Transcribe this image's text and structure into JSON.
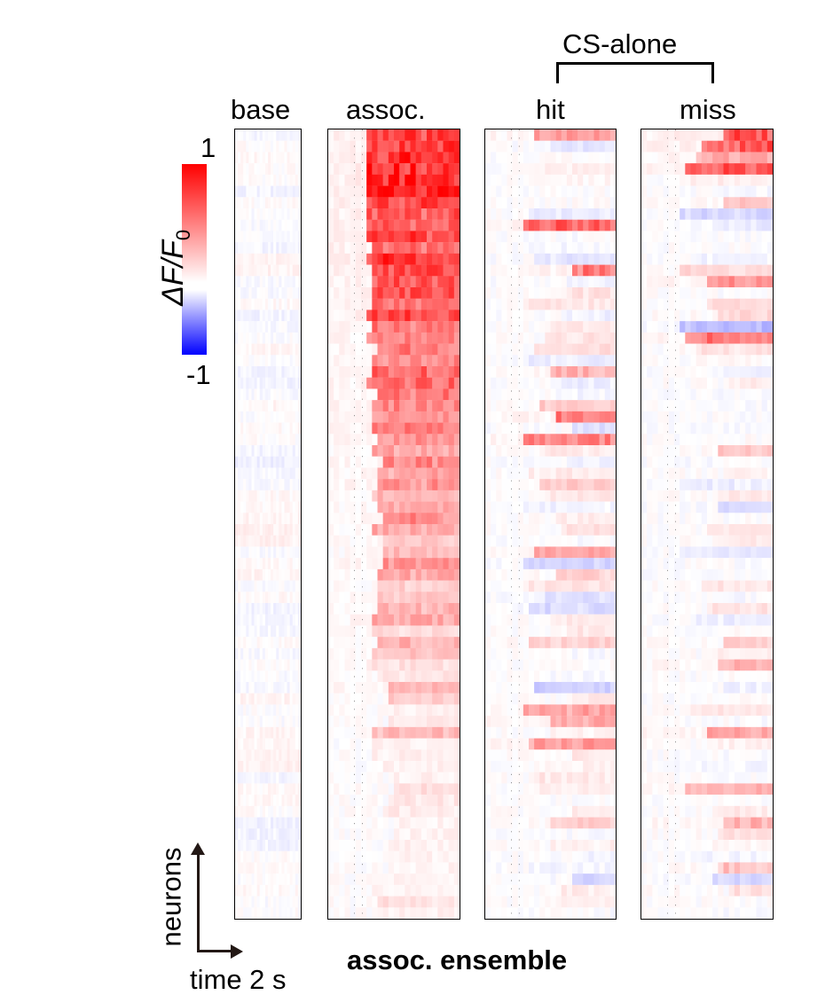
{
  "chart_data": {
    "type": "heatmap",
    "title": "",
    "xlabel": "assoc. ensemble",
    "group_label": "CS-alone",
    "panels": [
      {
        "label": "base",
        "mode": "base",
        "seed": 3
      },
      {
        "label": "assoc.",
        "mode": "assoc",
        "seed": 11
      },
      {
        "label": "hit",
        "mode": "hit",
        "seed": 27
      },
      {
        "label": "miss",
        "mode": "miss",
        "seed": 41
      }
    ],
    "neurons": 70,
    "colorbar": {
      "label_main": "ΔF/F",
      "label_sub": "0",
      "max_label": "1",
      "min_label": "-1",
      "range": [
        -1,
        1
      ],
      "colors": {
        "high": "#ff0000",
        "mid": "#ffffff",
        "low": "#0000ff"
      }
    },
    "scale_bar": {
      "y_label": "neurons",
      "x_label": "time 2 s"
    }
  }
}
